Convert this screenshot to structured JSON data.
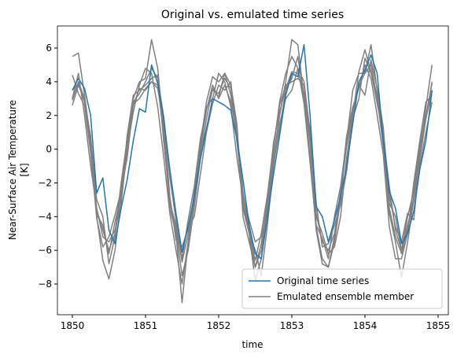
{
  "chart_data": {
    "type": "line",
    "title": "Original vs. emulated time series",
    "xlabel": "time",
    "ylabel": [
      "Near-Surface Air Temperature",
      "[K]"
    ],
    "x": [
      1850,
      1850.083,
      1850.167,
      1850.25,
      1850.333,
      1850.417,
      1850.5,
      1850.583,
      1850.667,
      1850.75,
      1850.833,
      1850.917,
      1851,
      1851.083,
      1851.167,
      1851.25,
      1851.333,
      1851.417,
      1851.5,
      1851.583,
      1851.667,
      1851.75,
      1851.833,
      1851.917,
      1852,
      1852.083,
      1852.167,
      1852.25,
      1852.333,
      1852.417,
      1852.5,
      1852.583,
      1852.667,
      1852.75,
      1852.833,
      1852.917,
      1853,
      1853.083,
      1853.167,
      1853.25,
      1853.333,
      1853.417,
      1853.5,
      1853.583,
      1853.667,
      1853.75,
      1853.833,
      1853.917,
      1854,
      1854.083,
      1854.167,
      1854.25,
      1854.333,
      1854.417,
      1854.5,
      1854.583,
      1854.667,
      1854.75,
      1854.833,
      1854.917
    ],
    "series": [
      {
        "name": "Original time series",
        "color": "#1f77b4",
        "values": [
          3.5,
          4.2,
          3.6,
          2.0,
          -2.6,
          -1.7,
          -4.8,
          -5.6,
          -3.5,
          -1.8,
          0.5,
          2.4,
          2.2,
          5.0,
          3.9,
          1.8,
          -1.2,
          -3.8,
          -6.1,
          -4.6,
          -2.8,
          -0.6,
          1.2,
          3.0,
          2.8,
          2.6,
          2.3,
          0.6,
          -1.8,
          -4.5,
          -6.2,
          -6.5,
          -4.0,
          -1.5,
          0.8,
          3.2,
          4.5,
          4.3,
          6.2,
          2.0,
          -3.4,
          -4.0,
          -5.5,
          -4.2,
          -2.8,
          -1.0,
          1.5,
          4.0,
          4.7,
          5.6,
          4.5,
          0.5,
          -2.5,
          -3.5,
          -5.6,
          -5.0,
          -3.7,
          -1.2,
          0.5,
          3.5
        ]
      }
    ],
    "ensemble": {
      "name": "Emulated ensemble member",
      "color": "#808080",
      "members": [
        [
          5.5,
          5.7,
          3.2,
          0.5,
          -4.0,
          -6.6,
          -7.7,
          -6.0,
          -3.0,
          0.8,
          3.0,
          4.0,
          4.2,
          6.5,
          4.8,
          1.0,
          -3.5,
          -5.0,
          -9.1,
          -5.5,
          -2.6,
          0.3,
          2.8,
          4.3,
          4.0,
          4.5,
          3.8,
          1.5,
          -4.0,
          -5.5,
          -7.0,
          -6.0,
          -3.5,
          -0.5,
          2.0,
          4.0,
          6.5,
          6.2,
          3.0,
          -0.5,
          -4.8,
          -6.8,
          -7.0,
          -5.5,
          -3.0,
          0.5,
          3.5,
          4.5,
          4.5,
          6.2,
          3.5,
          0.5,
          -3.8,
          -5.5,
          -7.6,
          -5.5,
          -3.0,
          -0.2,
          2.5,
          5.0
        ],
        [
          2.6,
          3.8,
          2.9,
          0.2,
          -3.9,
          -4.5,
          -6.2,
          -4.3,
          -2.8,
          0.8,
          3.2,
          3.5,
          3.8,
          4.2,
          4.4,
          0.4,
          -3.0,
          -4.8,
          -7.5,
          -6.0,
          -3.4,
          -0.6,
          1.8,
          3.6,
          3.1,
          4.5,
          3.2,
          0.7,
          -3.5,
          -5.0,
          -6.0,
          -7.5,
          -4.5,
          -1.0,
          1.5,
          3.0,
          3.5,
          4.8,
          4.0,
          1.0,
          -4.5,
          -5.3,
          -6.5,
          -4.0,
          -2.2,
          0.5,
          2.2,
          3.8,
          3.2,
          5.3,
          3.6,
          1.3,
          -3.2,
          -4.0,
          -6.0,
          -4.5,
          -3.1,
          -1.0,
          1.0,
          2.8
        ],
        [
          4.4,
          3.3,
          2.6,
          -0.2,
          -4.1,
          -5.8,
          -5.2,
          -3.9,
          -2.5,
          -0.5,
          2.7,
          3.0,
          3.6,
          4.0,
          3.6,
          1.5,
          -2.8,
          -5.4,
          -5.8,
          -4.7,
          -4.0,
          -1.5,
          1.0,
          2.7,
          3.8,
          3.5,
          4.0,
          0.4,
          -2.8,
          -4.2,
          -5.5,
          -5.2,
          -3.8,
          -0.8,
          1.2,
          3.5,
          4.2,
          5.5,
          3.0,
          1.2,
          -3.2,
          -5.8,
          -5.6,
          -4.5,
          -3.3,
          -1.3,
          1.8,
          3.0,
          5.4,
          4.5,
          3.2,
          1.2,
          -2.7,
          -4.6,
          -5.5,
          -3.8,
          -4.2,
          -0.6,
          1.8,
          4.0
        ],
        [
          3.0,
          4.5,
          2.0,
          -1.0,
          -3.5,
          -5.2,
          -5.5,
          -4.8,
          -3.2,
          0.0,
          2.2,
          3.8,
          4.8,
          4.5,
          2.5,
          -0.5,
          -3.8,
          -6.0,
          -8.0,
          -5.5,
          -3.0,
          -0.2,
          2.5,
          3.0,
          4.5,
          4.0,
          2.5,
          -0.5,
          -3.0,
          -5.0,
          -7.8,
          -6.5,
          -3.2,
          0.0,
          2.8,
          4.5,
          5.5,
          4.8,
          2.7,
          -0.8,
          -4.6,
          -6.5,
          -7.0,
          -5.2,
          -2.5,
          0.8,
          2.5,
          3.6,
          5.0,
          4.2,
          2.0,
          -0.3,
          -4.6,
          -6.5,
          -6.5,
          -5.0,
          -2.0,
          0.5,
          2.8,
          3.2
        ],
        [
          3.5,
          3.9,
          2.8,
          0.8,
          -3.0,
          -4.0,
          -6.8,
          -5.2,
          -2.4,
          0.3,
          2.8,
          3.3,
          4.0,
          4.8,
          4.2,
          1.9,
          -1.7,
          -4.2,
          -6.5,
          -4.2,
          -2.2,
          0.6,
          2.4,
          3.5,
          3.3,
          4.2,
          3.6,
          1.0,
          -2.5,
          -4.8,
          -6.6,
          -5.0,
          -2.7,
          0.2,
          2.6,
          3.8,
          4.0,
          4.2,
          3.8,
          0.5,
          -4.0,
          -5.0,
          -6.2,
          -5.8,
          -4.0,
          -0.5,
          2.0,
          4.6,
          5.9,
          4.6,
          2.7,
          0.8,
          -2.2,
          -4.8,
          -6.0,
          -4.0,
          -2.5,
          0.3,
          2.0,
          3.9
        ],
        [
          2.9,
          4.0,
          3.0,
          0.0,
          -3.6,
          -4.8,
          -6.0,
          -5.0,
          -2.0,
          0.6,
          2.6,
          3.6,
          3.5,
          4.0,
          3.8,
          0.8,
          -3.2,
          -4.5,
          -6.7,
          -5.0,
          -2.6,
          0.2,
          2.3,
          3.8,
          3.0,
          3.8,
          2.8,
          0.9,
          -3.3,
          -5.0,
          -7.0,
          -5.6,
          -3.0,
          0.4,
          2.2,
          3.6,
          4.6,
          4.5,
          3.3,
          0.3,
          -3.8,
          -5.5,
          -6.0,
          -5.0,
          -2.6,
          0.2,
          2.2,
          3.8,
          4.5,
          5.0,
          3.0,
          0.2,
          -3.5,
          -5.2,
          -6.2,
          -4.8,
          -2.8,
          0.0,
          1.8,
          3.5
        ]
      ]
    },
    "xlim": [
      1849.796,
      1855.14
    ],
    "ylim": [
      -9.82,
      7.31
    ],
    "xticks": [
      1850,
      1851,
      1852,
      1853,
      1854,
      1855
    ],
    "yticks": [
      {
        "value": -8,
        "label": "−8"
      },
      {
        "value": -6,
        "label": "−6"
      },
      {
        "value": -4,
        "label": "−4"
      },
      {
        "value": -2,
        "label": "−2"
      },
      0,
      2,
      4,
      6
    ],
    "grid": false,
    "legend": "lower right"
  }
}
